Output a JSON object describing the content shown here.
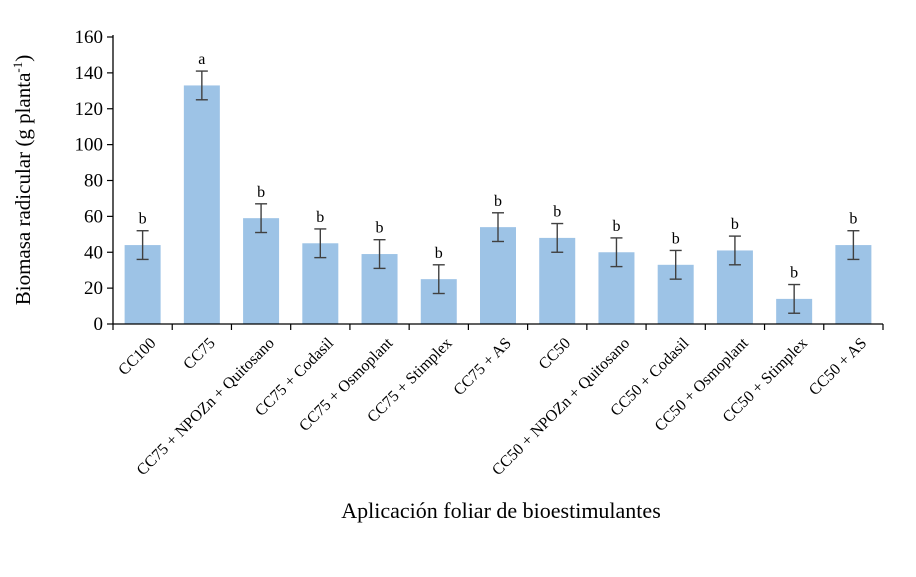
{
  "chart_data": {
    "type": "bar",
    "title": "",
    "xlabel": "Aplicación foliar de bioestimulantes",
    "ylabel": "Biomasa radicular (g planta",
    "ylabel_sup": "-1",
    "ylabel_close": ")",
    "ylim": [
      0,
      160
    ],
    "yticks": [
      0,
      20,
      40,
      60,
      80,
      100,
      120,
      140,
      160
    ],
    "ytick_labels": [
      "0",
      "20",
      "40",
      "60",
      "80",
      "100",
      "120",
      "140",
      "160"
    ],
    "grid": false,
    "legend": "none",
    "bar_color": "#9DC3E6",
    "error_bar_color": "#404040",
    "categories": [
      "CC100",
      "CC75",
      "CC75 + NPOZn + Quitosano",
      "CC75 + Codasil",
      "CC75 + Osmoplant",
      "CC75 + Stimplex",
      "CC75 + AS",
      "CC50",
      "CC50 + NPOZn + Quitosano",
      "CC50 + Codasil",
      "CC50 + Osmoplant",
      "CC50 + Stimplex",
      "CC50 + AS"
    ],
    "values": [
      44,
      133,
      59,
      45,
      39,
      25,
      54,
      48,
      40,
      33,
      41,
      14,
      44
    ],
    "errors": [
      8,
      8,
      8,
      8,
      8,
      8,
      8,
      8,
      8,
      8,
      8,
      8,
      8
    ],
    "significance": [
      "b",
      "a",
      "b",
      "b",
      "b",
      "b",
      "b",
      "b",
      "b",
      "b",
      "b",
      "b",
      "b"
    ]
  }
}
